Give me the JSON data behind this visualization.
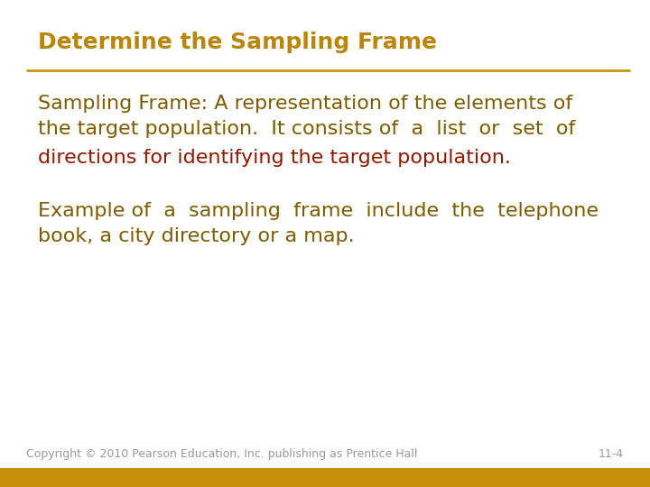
{
  "title": "Determine the Sampling Frame",
  "title_color": "#B8860B",
  "title_fontsize": 18,
  "title_bold": true,
  "line_color": "#C8960A",
  "body_text_1a": "Sampling Frame: A representation of the elements of\nthe target population.  It consists of  a  list  or  set  of",
  "body_text_1b": "directions for identifying the target population.",
  "body_text_2": "Example of  a  sampling  frame  include  the  telephone\nbook, a city directory or a map.",
  "body_color_1": "#7B5C00",
  "body_color_2": "#8B1A00",
  "body_fontsize": 16,
  "footer_text": "Copyright © 2010 Pearson Education, Inc. publishing as Prentice Hall",
  "footer_page": "11-4",
  "footer_color": "#999999",
  "footer_fontsize": 9,
  "bg_color": "#FFFFFF",
  "bottom_bar_color": "#C8900A",
  "bottom_bar_height": 0.038
}
